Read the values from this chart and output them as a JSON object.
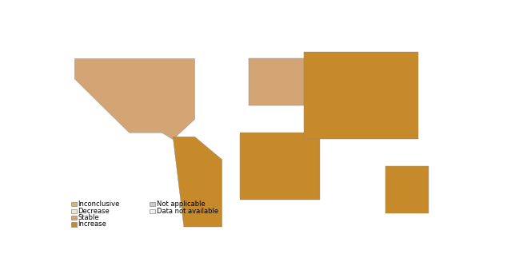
{
  "title": "",
  "figsize": [
    6.34,
    3.28
  ],
  "dpi": 100,
  "colors": {
    "Increase": "#C68A2A",
    "Stable": "#D4A574",
    "Decrease": "#F5E6C8",
    "Inconclusive": "#D4B96A",
    "Data not available": "#F0F0F0",
    "Not applicable": "#CCCCCC",
    "border": "#888888",
    "background": "#FFFFFF",
    "ocean": "#FFFFFF"
  },
  "legend_items": [
    {
      "label": "Increase",
      "color": "#C68A2A",
      "col": 0,
      "row": 0
    },
    {
      "label": "Stable",
      "color": "#D4A574",
      "col": 0,
      "row": 1
    },
    {
      "label": "Decrease",
      "color": "#F5E6C8",
      "col": 0,
      "row": 2
    },
    {
      "label": "Inconclusive",
      "color": "#D4B96A",
      "col": 0,
      "row": 3
    },
    {
      "label": "Data not available",
      "color": "#F0F0F0",
      "col": 1,
      "row": 2
    },
    {
      "label": "Not applicable",
      "color": "#CCCCCC",
      "col": 1,
      "row": 3
    }
  ]
}
